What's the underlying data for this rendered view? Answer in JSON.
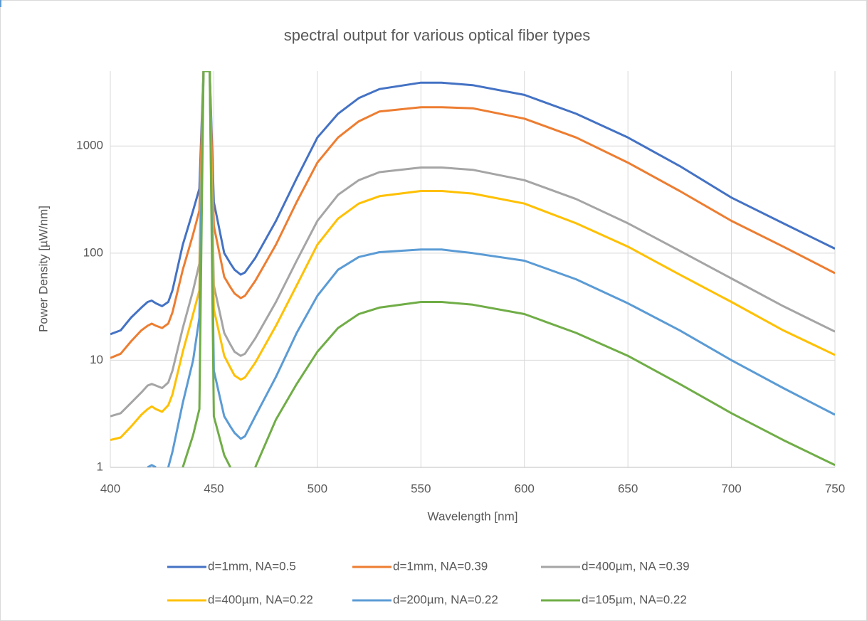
{
  "chart_data": {
    "type": "line",
    "title": "spectral output for various optical fiber types",
    "x_label": "Wavelength [nm]",
    "y_label": "Power Density [µW/nm]",
    "y_log": true,
    "grid": true,
    "legend": "bottom",
    "xlim": [
      400,
      750
    ],
    "xticks": [
      400,
      450,
      500,
      550,
      600,
      650,
      700,
      750
    ],
    "ylim": [
      1,
      5000
    ],
    "yticks": [
      1,
      10,
      100,
      1000
    ],
    "x": [
      400,
      405,
      410,
      415,
      418,
      420,
      422,
      425,
      428,
      430,
      435,
      440,
      443,
      445,
      448,
      450,
      455,
      458,
      460,
      463,
      465,
      470,
      480,
      490,
      500,
      510,
      520,
      530,
      550,
      560,
      575,
      600,
      625,
      650,
      675,
      700,
      725,
      750
    ],
    "series": [
      {
        "name": "d=1mm, NA=0.5",
        "color": "#4472c4",
        "values": [
          17.5,
          19,
          25,
          31,
          35,
          36,
          34,
          32,
          35,
          45,
          120,
          250,
          400,
          5000,
          5000,
          300,
          100,
          80,
          70,
          63,
          66,
          90,
          200,
          500,
          1200,
          2000,
          2800,
          3400,
          3900,
          3900,
          3700,
          3000,
          2000,
          1200,
          650,
          330,
          190,
          110
        ]
      },
      {
        "name": "d=1mm, NA=0.39",
        "color": "#ed7d31",
        "values": [
          10.5,
          11.5,
          15,
          19,
          21,
          22,
          21,
          20,
          22,
          28,
          70,
          150,
          250,
          5000,
          5000,
          180,
          60,
          48,
          42,
          38,
          40,
          55,
          120,
          300,
          700,
          1200,
          1700,
          2100,
          2300,
          2300,
          2250,
          1800,
          1200,
          700,
          380,
          200,
          115,
          65
        ]
      },
      {
        "name": "d=400µm, NA =0.39",
        "color": "#a5a5a5",
        "values": [
          3,
          3.2,
          4,
          5,
          5.8,
          6,
          5.8,
          5.5,
          6.2,
          8,
          20,
          45,
          80,
          5000,
          5000,
          50,
          18,
          14,
          12,
          11,
          11.5,
          16,
          35,
          85,
          200,
          350,
          480,
          570,
          630,
          630,
          600,
          480,
          320,
          190,
          105,
          58,
          32,
          18.5
        ]
      },
      {
        "name": "d=400µm, NA=0.22",
        "color": "#ffc000",
        "values": [
          1.8,
          1.9,
          2.4,
          3.1,
          3.5,
          3.7,
          3.5,
          3.3,
          3.8,
          4.8,
          12,
          27,
          45,
          5000,
          5000,
          30,
          11,
          8.5,
          7.2,
          6.6,
          6.9,
          9.5,
          21,
          50,
          120,
          210,
          290,
          340,
          380,
          380,
          360,
          290,
          190,
          115,
          63,
          35,
          19,
          11.2
        ]
      },
      {
        "name": "d=200µm, NA=0.22",
        "color": "#5b9bd5",
        "values": [
          null,
          null,
          null,
          null,
          1,
          1.05,
          1,
          null,
          1,
          1.4,
          4,
          10,
          25,
          5000,
          5000,
          8,
          3,
          2.4,
          2.1,
          1.85,
          1.95,
          3,
          7,
          18,
          40,
          70,
          92,
          102,
          108,
          108,
          100,
          85,
          57,
          34,
          19,
          10,
          5.5,
          3.1
        ]
      },
      {
        "name": "d=105µm, NA=0.22",
        "color": "#70ad47",
        "values": [
          null,
          null,
          null,
          null,
          null,
          null,
          null,
          null,
          null,
          null,
          1,
          2,
          3.5,
          5000,
          5000,
          3,
          1.3,
          1,
          null,
          null,
          null,
          1,
          2.8,
          6,
          12,
          20,
          27,
          31,
          35,
          35,
          33,
          27,
          18,
          11,
          6,
          3.2,
          1.8,
          1.05
        ]
      }
    ]
  }
}
